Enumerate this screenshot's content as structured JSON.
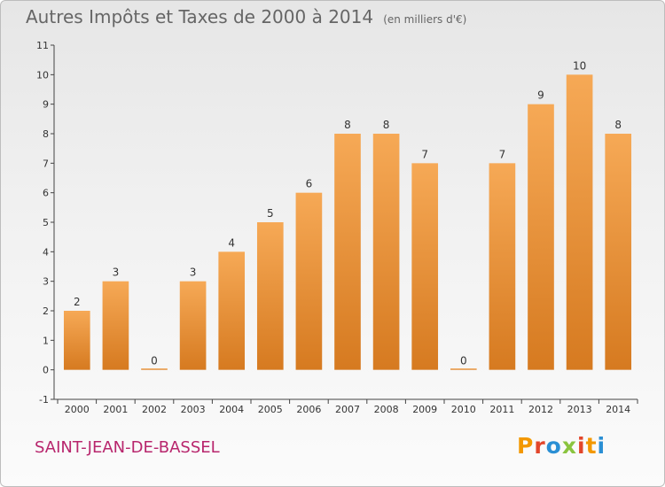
{
  "header": {
    "title": "Autres Impôts et Taxes de 2000 à 2014",
    "unit": "(en milliers d'€)"
  },
  "footer": {
    "place": "SAINT-JEAN-DE-BASSEL",
    "brand": "Proxiti"
  },
  "colors": {
    "bar_light": "#f6a956",
    "bar_dark": "#d67a20",
    "place": "#b8266d",
    "brand_letters": [
      "#f39800",
      "#e2462b",
      "#2a8fd4",
      "#8ac43f",
      "#e2462b",
      "#f39800",
      "#2a8fd4"
    ]
  },
  "chart_data": {
    "type": "bar",
    "categories": [
      "2000",
      "2001",
      "2002",
      "2003",
      "2004",
      "2005",
      "2006",
      "2007",
      "2008",
      "2009",
      "2010",
      "2011",
      "2012",
      "2013",
      "2014"
    ],
    "values": [
      2,
      3,
      0,
      3,
      4,
      5,
      6,
      8,
      8,
      7,
      0,
      7,
      9,
      10,
      8
    ],
    "title": "Autres Impôts et Taxes de 2000 à 2014",
    "unit": "(en milliers d'€)",
    "ylim": [
      -1,
      11
    ],
    "y_ticks": [
      -1,
      0,
      1,
      2,
      3,
      4,
      5,
      6,
      7,
      8,
      9,
      10,
      11
    ],
    "grid": false
  }
}
